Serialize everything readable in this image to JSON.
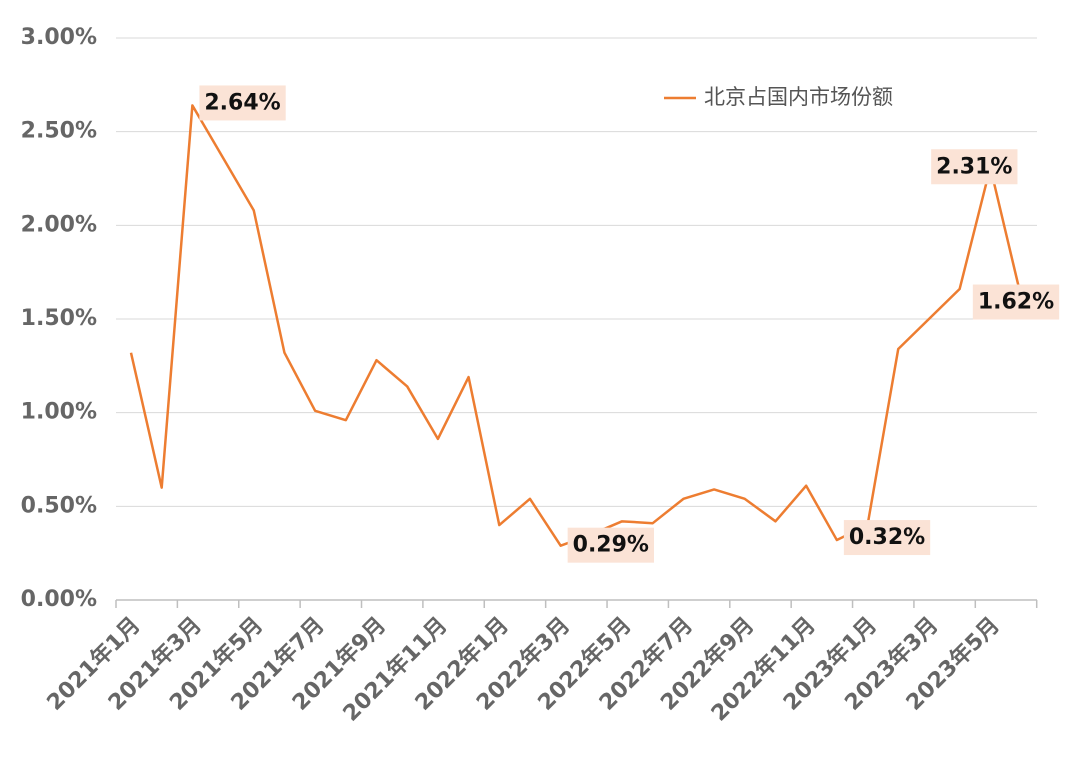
{
  "chart_data": {
    "type": "line",
    "categories": [
      "2021年1月",
      null,
      "2021年3月",
      null,
      "2021年5月",
      null,
      "2021年7月",
      null,
      "2021年9月",
      null,
      "2021年11月",
      null,
      "2022年1月",
      null,
      "2022年3月",
      null,
      "2022年5月",
      null,
      "2022年7月",
      null,
      "2022年9月",
      null,
      "2022年11月",
      null,
      "2023年1月",
      null,
      "2023年3月",
      null,
      "2023年5月",
      null
    ],
    "series": [
      {
        "name": "北京占国内市场份额",
        "color": "#ed7d31",
        "values": [
          1.32,
          0.6,
          2.64,
          2.36,
          2.08,
          1.32,
          1.01,
          0.96,
          1.28,
          1.14,
          0.86,
          1.19,
          0.4,
          0.54,
          0.29,
          0.35,
          0.42,
          0.41,
          0.54,
          0.59,
          0.54,
          0.42,
          0.61,
          0.32,
          0.4,
          1.34,
          1.5,
          1.66,
          2.31,
          1.62
        ],
        "value_labels": [
          null,
          null,
          "2.64%",
          null,
          null,
          null,
          null,
          null,
          null,
          null,
          null,
          null,
          null,
          null,
          "0.29%",
          null,
          null,
          null,
          null,
          null,
          null,
          null,
          null,
          "0.32%",
          null,
          null,
          null,
          null,
          "2.31%",
          "1.62%"
        ]
      }
    ],
    "ylim": [
      0,
      3
    ],
    "yticks": [
      {
        "value": 0,
        "label": "0.00%"
      },
      {
        "value": 0.5,
        "label": "0.50%"
      },
      {
        "value": 1,
        "label": "1.00%"
      },
      {
        "value": 1.5,
        "label": "1.50%"
      },
      {
        "value": 2,
        "label": "2.00%"
      },
      {
        "value": 2.5,
        "label": "2.50%"
      },
      {
        "value": 3,
        "label": "3.00%"
      }
    ],
    "grid": true
  }
}
